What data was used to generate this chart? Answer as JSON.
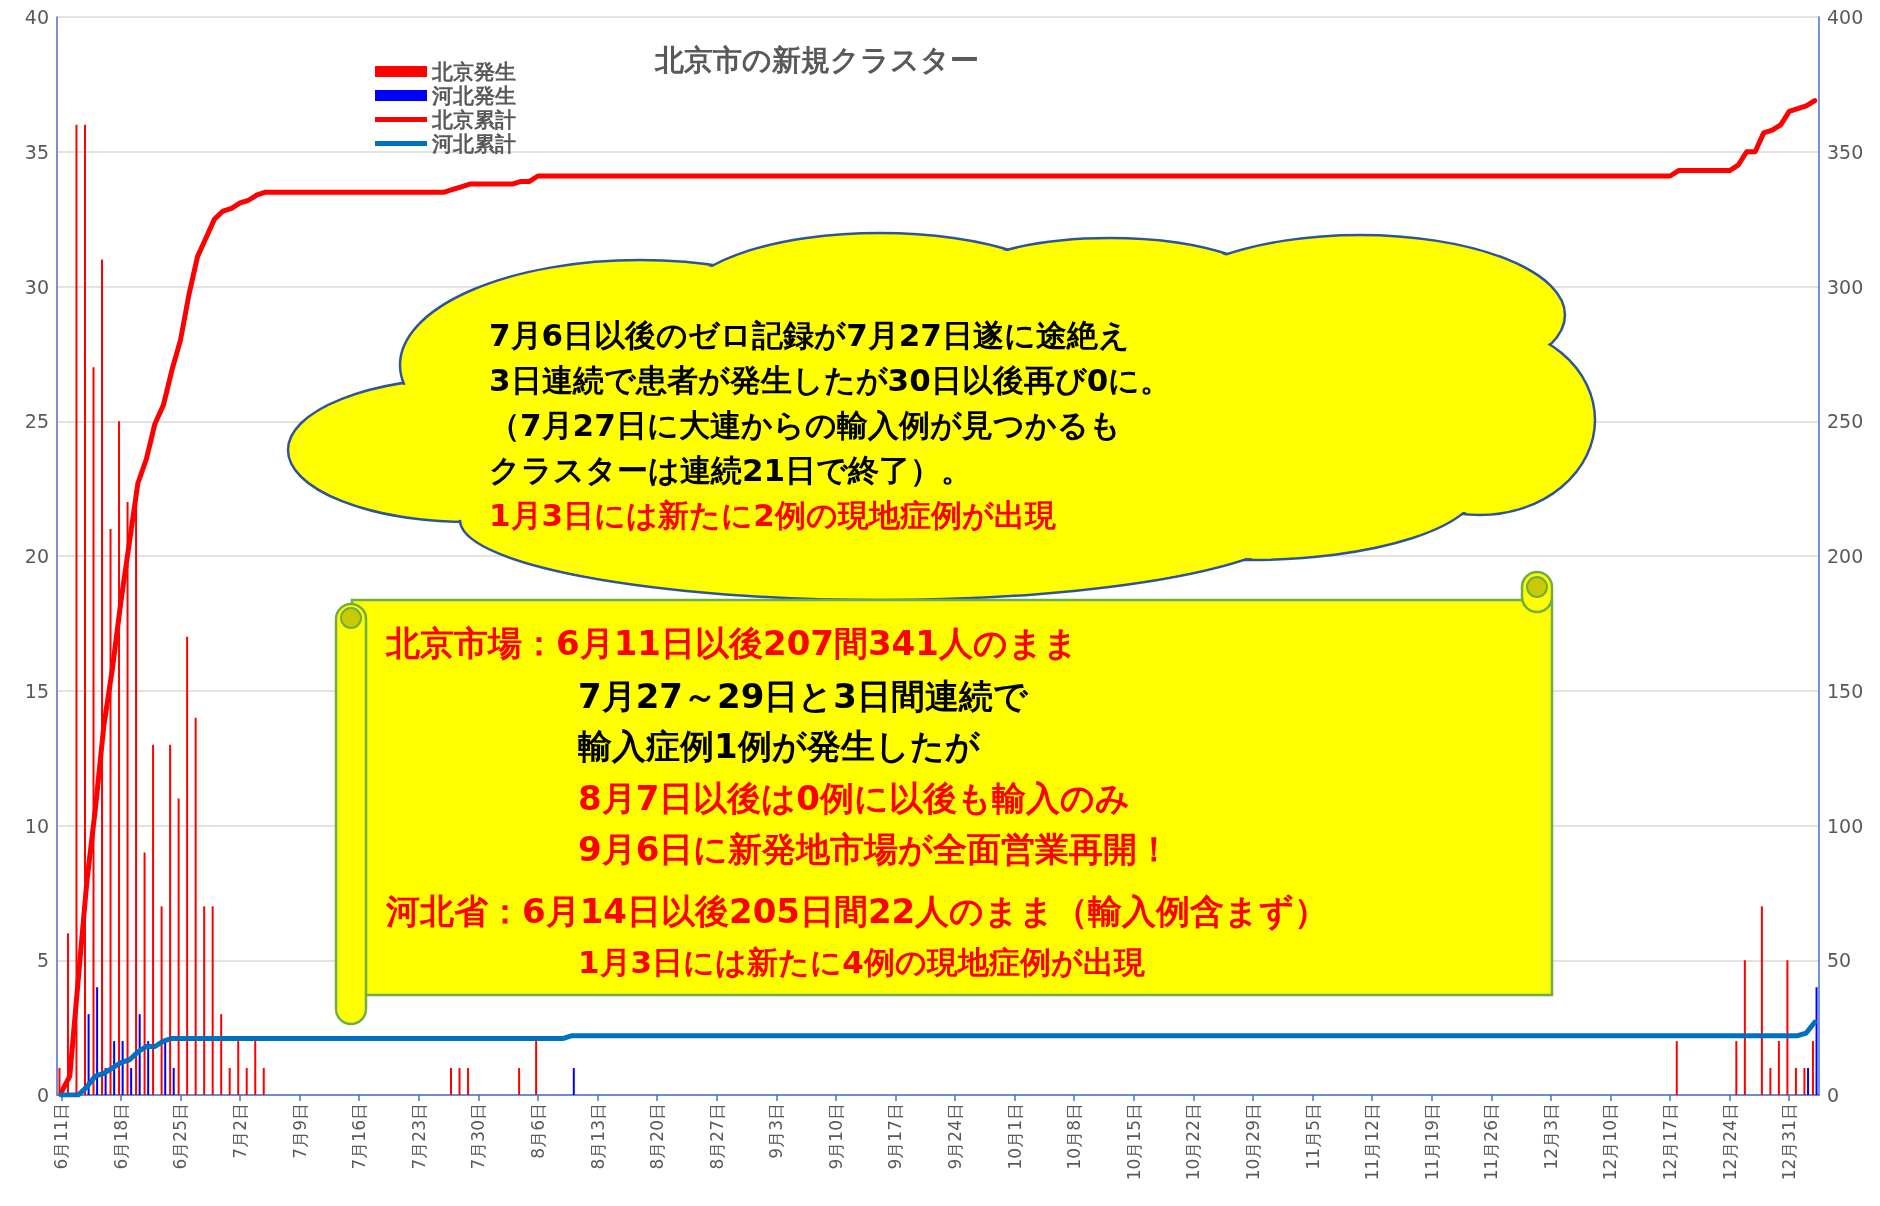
{
  "chart_data": {
    "type": "bar",
    "title": "北京市の新規クラスター",
    "categories": [
      "6月11日",
      null,
      null,
      null,
      null,
      null,
      null,
      "6月18日",
      null,
      null,
      null,
      null,
      null,
      null,
      "6月25日",
      null,
      null,
      null,
      null,
      null,
      null,
      "7月2日",
      null,
      null,
      null,
      null,
      null,
      null,
      "7月9日",
      null,
      null,
      null,
      null,
      null,
      null,
      "7月16日",
      null,
      null,
      null,
      null,
      null,
      null,
      "7月23日",
      null,
      null,
      null,
      null,
      null,
      null,
      "7月30日",
      null,
      null,
      null,
      null,
      null,
      null,
      "8月6日",
      null,
      null,
      null,
      null,
      null,
      null,
      "8月13日",
      null,
      null,
      null,
      null,
      null,
      null,
      "8月20日",
      null,
      null,
      null,
      null,
      null,
      null,
      "8月27日",
      null,
      null,
      null,
      null,
      null,
      null,
      "9月3日",
      null,
      null,
      null,
      null,
      null,
      null,
      "9月10日",
      null,
      null,
      null,
      null,
      null,
      null,
      "9月17日",
      null,
      null,
      null,
      null,
      null,
      null,
      "9月24日",
      null,
      null,
      null,
      null,
      null,
      null,
      "10月1日",
      null,
      null,
      null,
      null,
      null,
      null,
      "10月8日",
      null,
      null,
      null,
      null,
      null,
      null,
      "10月15日",
      null,
      null,
      null,
      null,
      null,
      null,
      "10月22日",
      null,
      null,
      null,
      null,
      null,
      null,
      "10月29日",
      null,
      null,
      null,
      null,
      null,
      null,
      "11月5日",
      null,
      null,
      null,
      null,
      null,
      null,
      "11月12日",
      null,
      null,
      null,
      null,
      null,
      null,
      "11月19日",
      null,
      null,
      null,
      null,
      null,
      null,
      "11月26日",
      null,
      null,
      null,
      null,
      null,
      null,
      "12月3日",
      null,
      null,
      null,
      null,
      null,
      null,
      "12月10日",
      null,
      null,
      null,
      null,
      null,
      null,
      "12月17日",
      null,
      null,
      null,
      null,
      null,
      null,
      "12月24日",
      null,
      null,
      null,
      null,
      null,
      null,
      "12月31日",
      null,
      null,
      null
    ],
    "series": [
      {
        "name": "北京発生",
        "color": "#ff0000",
        "values": [
          1,
          6,
          36,
          36,
          27,
          31,
          21,
          25,
          22,
          22,
          9,
          13,
          7,
          13,
          11,
          17,
          14,
          7,
          7,
          3,
          1,
          2,
          1,
          2,
          1,
          0,
          0,
          0,
          0,
          0,
          0,
          0,
          0,
          0,
          0,
          0,
          0,
          0,
          0,
          0,
          0,
          0,
          0,
          0,
          0,
          0,
          1,
          1,
          1,
          0,
          0,
          0,
          0,
          0,
          1,
          0,
          2,
          0,
          0,
          0,
          0,
          0,
          0,
          0,
          0,
          0,
          0,
          0,
          0,
          0,
          0,
          0,
          0,
          0,
          0,
          0,
          0,
          0,
          0,
          0,
          0,
          0,
          0,
          0,
          0,
          0,
          0,
          0,
          0,
          0,
          0,
          0,
          0,
          0,
          0,
          0,
          0,
          0,
          0,
          0,
          0,
          0,
          0,
          0,
          0,
          0,
          0,
          0,
          0,
          0,
          0,
          0,
          0,
          0,
          0,
          0,
          0,
          0,
          0,
          0,
          0,
          0,
          0,
          0,
          0,
          0,
          0,
          0,
          0,
          0,
          0,
          0,
          0,
          0,
          0,
          0,
          0,
          0,
          0,
          0,
          0,
          0,
          0,
          0,
          0,
          0,
          0,
          0,
          0,
          0,
          0,
          0,
          0,
          0,
          0,
          0,
          0,
          0,
          0,
          0,
          0,
          0,
          0,
          0,
          0,
          0,
          0,
          0,
          0,
          0,
          0,
          0,
          0,
          0,
          0,
          0,
          0,
          0,
          0,
          0,
          0,
          0,
          0,
          0,
          0,
          0,
          0,
          0,
          0,
          0,
          2,
          0,
          0,
          0,
          0,
          0,
          0,
          2,
          5,
          0,
          7,
          1,
          2,
          5,
          1,
          1,
          2
        ]
      },
      {
        "name": "河北発生",
        "color": "#0000ff",
        "values": [
          0,
          0,
          0,
          3,
          4,
          1,
          2,
          2,
          1,
          3,
          2,
          0,
          2,
          1,
          0,
          0,
          0,
          0,
          0,
          0,
          0,
          0,
          0,
          0,
          0,
          0,
          0,
          0,
          0,
          0,
          0,
          0,
          0,
          0,
          0,
          0,
          0,
          0,
          0,
          0,
          0,
          0,
          0,
          0,
          0,
          0,
          0,
          0,
          0,
          0,
          0,
          0,
          0,
          0,
          0,
          0,
          0,
          0,
          0,
          0,
          1,
          0,
          0,
          0,
          0,
          0,
          0,
          0,
          0,
          0,
          0,
          0,
          0,
          0,
          0,
          0,
          0,
          0,
          0,
          0,
          0,
          0,
          0,
          0,
          0,
          0,
          0,
          0,
          0,
          0,
          0,
          0,
          0,
          0,
          0,
          0,
          0,
          0,
          0,
          0,
          0,
          0,
          0,
          0,
          0,
          0,
          0,
          0,
          0,
          0,
          0,
          0,
          0,
          0,
          0,
          0,
          0,
          0,
          0,
          0,
          0,
          0,
          0,
          0,
          0,
          0,
          0,
          0,
          0,
          0,
          0,
          0,
          0,
          0,
          0,
          0,
          0,
          0,
          0,
          0,
          0,
          0,
          0,
          0,
          0,
          0,
          0,
          0,
          0,
          0,
          0,
          0,
          0,
          0,
          0,
          0,
          0,
          0,
          0,
          0,
          0,
          0,
          0,
          0,
          0,
          0,
          0,
          0,
          0,
          0,
          0,
          0,
          0,
          0,
          0,
          0,
          0,
          0,
          0,
          0,
          0,
          0,
          0,
          0,
          0,
          0,
          0,
          0,
          0,
          0,
          0,
          0,
          0,
          0,
          0,
          0,
          0,
          0,
          0,
          0,
          0,
          0,
          0,
          0,
          0,
          1,
          4
        ]
      },
      {
        "name": "北京累計",
        "type": "line",
        "axis": "y2",
        "color": "#ff0000",
        "values": [
          1,
          7,
          43,
          79,
          106,
          137,
          158,
          183,
          205,
          227,
          236,
          249,
          256,
          269,
          280,
          297,
          311,
          318,
          325,
          328,
          329,
          331,
          332,
          334,
          335,
          335,
          335,
          335,
          335,
          335,
          335,
          335,
          335,
          335,
          335,
          335,
          335,
          335,
          335,
          335,
          335,
          335,
          335,
          335,
          335,
          335,
          336,
          337,
          338,
          338,
          338,
          338,
          338,
          338,
          339,
          339,
          341,
          341,
          341,
          341,
          341,
          341,
          341,
          341,
          341,
          341,
          341,
          341,
          341,
          341,
          341,
          341,
          341,
          341,
          341,
          341,
          341,
          341,
          341,
          341,
          341,
          341,
          341,
          341,
          341,
          341,
          341,
          341,
          341,
          341,
          341,
          341,
          341,
          341,
          341,
          341,
          341,
          341,
          341,
          341,
          341,
          341,
          341,
          341,
          341,
          341,
          341,
          341,
          341,
          341,
          341,
          341,
          341,
          341,
          341,
          341,
          341,
          341,
          341,
          341,
          341,
          341,
          341,
          341,
          341,
          341,
          341,
          341,
          341,
          341,
          341,
          341,
          341,
          341,
          341,
          341,
          341,
          341,
          341,
          341,
          341,
          341,
          341,
          341,
          341,
          341,
          341,
          341,
          341,
          341,
          341,
          341,
          341,
          341,
          341,
          341,
          341,
          341,
          341,
          341,
          341,
          341,
          341,
          341,
          341,
          341,
          341,
          341,
          341,
          341,
          341,
          341,
          341,
          341,
          341,
          341,
          341,
          341,
          341,
          341,
          341,
          341,
          341,
          341,
          341,
          341,
          341,
          341,
          341,
          341,
          343,
          343,
          343,
          343,
          343,
          343,
          343,
          345,
          350,
          350,
          357,
          358,
          360,
          365,
          366,
          367,
          369
        ]
      },
      {
        "name": "河北累計",
        "type": "line",
        "axis": "y2",
        "color": "#0070c0",
        "values": [
          0,
          0,
          0,
          3,
          7,
          8,
          10,
          12,
          13,
          16,
          18,
          18,
          20,
          21,
          21,
          21,
          21,
          21,
          21,
          21,
          21,
          21,
          21,
          21,
          21,
          21,
          21,
          21,
          21,
          21,
          21,
          21,
          21,
          21,
          21,
          21,
          21,
          21,
          21,
          21,
          21,
          21,
          21,
          21,
          21,
          21,
          21,
          21,
          21,
          21,
          21,
          21,
          21,
          21,
          21,
          21,
          21,
          21,
          21,
          21,
          22,
          22,
          22,
          22,
          22,
          22,
          22,
          22,
          22,
          22,
          22,
          22,
          22,
          22,
          22,
          22,
          22,
          22,
          22,
          22,
          22,
          22,
          22,
          22,
          22,
          22,
          22,
          22,
          22,
          22,
          22,
          22,
          22,
          22,
          22,
          22,
          22,
          22,
          22,
          22,
          22,
          22,
          22,
          22,
          22,
          22,
          22,
          22,
          22,
          22,
          22,
          22,
          22,
          22,
          22,
          22,
          22,
          22,
          22,
          22,
          22,
          22,
          22,
          22,
          22,
          22,
          22,
          22,
          22,
          22,
          22,
          22,
          22,
          22,
          22,
          22,
          22,
          22,
          22,
          22,
          22,
          22,
          22,
          22,
          22,
          22,
          22,
          22,
          22,
          22,
          22,
          22,
          22,
          22,
          22,
          22,
          22,
          22,
          22,
          22,
          22,
          22,
          22,
          22,
          22,
          22,
          22,
          22,
          22,
          22,
          22,
          22,
          22,
          22,
          22,
          22,
          22,
          22,
          22,
          22,
          22,
          22,
          22,
          22,
          22,
          22,
          22,
          22,
          22,
          22,
          22,
          22,
          22,
          22,
          22,
          22,
          22,
          22,
          22,
          22,
          22,
          22,
          22,
          22,
          22,
          23,
          27
        ]
      }
    ],
    "ylim": [
      0,
      40
    ],
    "yticks": [
      0,
      5,
      10,
      15,
      20,
      25,
      30,
      35,
      40
    ],
    "y2lim": [
      0,
      400
    ],
    "y2ticks": [
      0,
      50,
      100,
      150,
      200,
      250,
      300,
      350,
      400
    ],
    "grid": "y",
    "legend": "top left",
    "annotations": [
      "7月6日以後のゼロ記録が7月27日遂に途絶え",
      "3日連続で患者が発生したが30日以後再び0に。",
      "（7月27日に大連からの輸入例が見つかるも",
      "クラスターは連続21日で終了）。",
      "1月3日には新たに2例の現地症例が出現",
      "北京市場：6月11日以後207間341人のまま",
      "7月27～29日と3日間連続で",
      "輸入症例1例が発生したが",
      "8月7日以後は0例に以後も輸入のみ",
      "9月6日に新発地市場が全面営業再開！",
      "河北省：6月14日以後205日間22人のまま（輸入例含まず）",
      "1月3日には新たに4例の現地症例が出現"
    ]
  }
}
